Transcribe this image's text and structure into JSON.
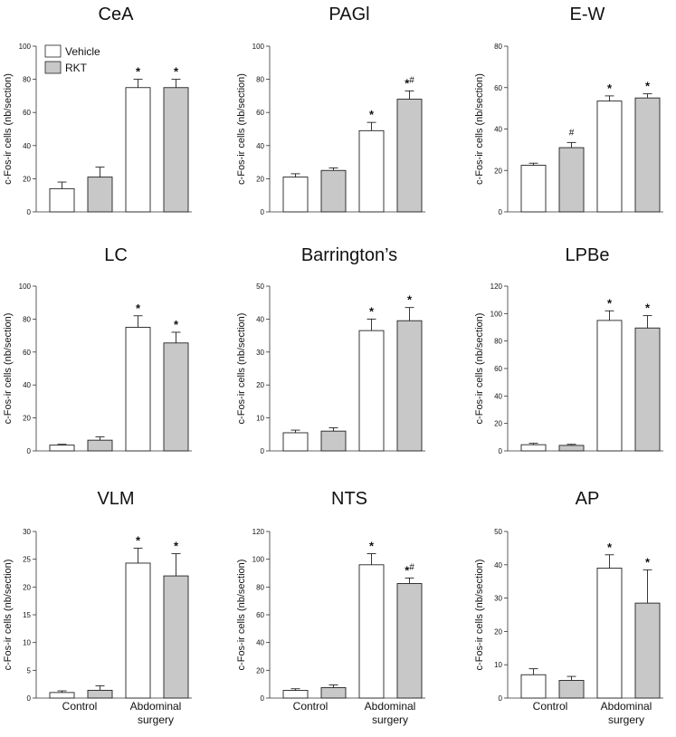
{
  "colors": {
    "vehicle": "#ffffff",
    "rkt": "#c8c8c8",
    "stroke": "#222222"
  },
  "legend": {
    "vehicle": "Vehicle",
    "rkt": "RKT"
  },
  "x_labels": {
    "control": "Control",
    "surgery_line1": "Abdominal",
    "surgery_line2": "surgery"
  },
  "chart_data": [
    {
      "type": "bar",
      "title": "CeA",
      "ylabel": "c-Fos-ir cells (nb/section)",
      "ylim": [
        0,
        100
      ],
      "yticks": [
        0,
        20,
        40,
        60,
        80,
        100
      ],
      "series": [
        {
          "name": "Vehicle",
          "values": [
            14,
            75
          ]
        },
        {
          "name": "RKT",
          "values": [
            21,
            75
          ]
        }
      ],
      "errors": [
        [
          4,
          5
        ],
        [
          6,
          5
        ]
      ],
      "categories": [
        "Control",
        "Abdominal surgery"
      ],
      "annotations": [
        {
          "bar": 2,
          "text": "*",
          "sup": ""
        },
        {
          "bar": 3,
          "text": "*",
          "sup": ""
        }
      ]
    },
    {
      "type": "bar",
      "title": "PAGl",
      "ylabel": "c-Fos-ir cells (nb/section)",
      "ylim": [
        0,
        100
      ],
      "yticks": [
        0,
        20,
        40,
        60,
        80,
        100
      ],
      "series": [
        {
          "name": "Vehicle",
          "values": [
            21,
            49
          ]
        },
        {
          "name": "RKT",
          "values": [
            25,
            68
          ]
        }
      ],
      "errors": [
        [
          2,
          5
        ],
        [
          1.5,
          5
        ]
      ],
      "categories": [
        "Control",
        "Abdominal surgery"
      ],
      "annotations": [
        {
          "bar": 2,
          "text": "*",
          "sup": ""
        },
        {
          "bar": 3,
          "text": "*",
          "sup": "#"
        }
      ]
    },
    {
      "type": "bar",
      "title": "E-W",
      "ylabel": "c-Fos-ir cells (nb/section)",
      "ylim": [
        0,
        80
      ],
      "yticks": [
        0,
        20,
        40,
        60,
        80
      ],
      "series": [
        {
          "name": "Vehicle",
          "values": [
            22.5,
            53.5
          ]
        },
        {
          "name": "RKT",
          "values": [
            31,
            55
          ]
        }
      ],
      "errors": [
        [
          1,
          2.5
        ],
        [
          2.5,
          2
        ]
      ],
      "categories": [
        "Control",
        "Abdominal surgery"
      ],
      "annotations": [
        {
          "bar": 1,
          "text": "#",
          "sup": ""
        },
        {
          "bar": 2,
          "text": "*",
          "sup": ""
        },
        {
          "bar": 3,
          "text": "*",
          "sup": ""
        }
      ]
    },
    {
      "type": "bar",
      "title": "LC",
      "ylabel": "c-Fos-ir cells (nb/section)",
      "ylim": [
        0,
        100
      ],
      "yticks": [
        0,
        20,
        40,
        60,
        80,
        100
      ],
      "series": [
        {
          "name": "Vehicle",
          "values": [
            3.5,
            75
          ]
        },
        {
          "name": "RKT",
          "values": [
            6.5,
            65.5
          ]
        }
      ],
      "errors": [
        [
          0.5,
          7
        ],
        [
          2,
          6.5
        ]
      ],
      "categories": [
        "Control",
        "Abdominal surgery"
      ],
      "annotations": [
        {
          "bar": 2,
          "text": "*",
          "sup": ""
        },
        {
          "bar": 3,
          "text": "*",
          "sup": ""
        }
      ]
    },
    {
      "type": "bar",
      "title": "Barrington’s",
      "ylabel": "c-Fos-ir cells (nb/section)",
      "ylim": [
        0,
        50
      ],
      "yticks": [
        0,
        10,
        20,
        30,
        40,
        50
      ],
      "series": [
        {
          "name": "Vehicle",
          "values": [
            5.5,
            36.5
          ]
        },
        {
          "name": "RKT",
          "values": [
            6,
            39.5
          ]
        }
      ],
      "errors": [
        [
          0.8,
          3.5
        ],
        [
          1,
          4
        ]
      ],
      "categories": [
        "Control",
        "Abdominal surgery"
      ],
      "annotations": [
        {
          "bar": 2,
          "text": "*",
          "sup": ""
        },
        {
          "bar": 3,
          "text": "*",
          "sup": ""
        }
      ]
    },
    {
      "type": "bar",
      "title": "LPBe",
      "ylabel": "c-Fos-ir cells (nb/section)",
      "ylim": [
        0,
        120
      ],
      "yticks": [
        0,
        20,
        40,
        60,
        80,
        100,
        120
      ],
      "series": [
        {
          "name": "Vehicle",
          "values": [
            4.5,
            95
          ]
        },
        {
          "name": "RKT",
          "values": [
            4,
            89.5
          ]
        }
      ],
      "errors": [
        [
          1,
          7
        ],
        [
          0.8,
          9
        ]
      ],
      "categories": [
        "Control",
        "Abdominal surgery"
      ],
      "annotations": [
        {
          "bar": 2,
          "text": "*",
          "sup": ""
        },
        {
          "bar": 3,
          "text": "*",
          "sup": ""
        }
      ]
    },
    {
      "type": "bar",
      "title": "VLM",
      "ylabel": "c-Fos-ir cells (nb/section)",
      "ylim": [
        0,
        30
      ],
      "yticks": [
        0,
        5,
        10,
        15,
        20,
        25,
        30
      ],
      "series": [
        {
          "name": "Vehicle",
          "values": [
            1,
            24.3
          ]
        },
        {
          "name": "RKT",
          "values": [
            1.4,
            22
          ]
        }
      ],
      "errors": [
        [
          0.3,
          2.7
        ],
        [
          0.8,
          4
        ]
      ],
      "categories": [
        "Control",
        "Abdominal surgery"
      ],
      "annotations": [
        {
          "bar": 2,
          "text": "*",
          "sup": ""
        },
        {
          "bar": 3,
          "text": "*",
          "sup": ""
        }
      ]
    },
    {
      "type": "bar",
      "title": "NTS",
      "ylabel": "c-Fos-ir cells (nb/section)",
      "ylim": [
        0,
        120
      ],
      "yticks": [
        0,
        20,
        40,
        60,
        80,
        100,
        120
      ],
      "series": [
        {
          "name": "Vehicle",
          "values": [
            5.5,
            96
          ]
        },
        {
          "name": "RKT",
          "values": [
            7.5,
            82.5
          ]
        }
      ],
      "errors": [
        [
          1.2,
          8
        ],
        [
          2,
          4
        ]
      ],
      "categories": [
        "Control",
        "Abdominal surgery"
      ],
      "annotations": [
        {
          "bar": 2,
          "text": "*",
          "sup": ""
        },
        {
          "bar": 3,
          "text": "*",
          "sup": "#"
        }
      ]
    },
    {
      "type": "bar",
      "title": "AP",
      "ylabel": "c-Fos-ir cells (nb/section)",
      "ylim": [
        0,
        50
      ],
      "yticks": [
        0,
        10,
        20,
        30,
        40,
        50
      ],
      "series": [
        {
          "name": "Vehicle",
          "values": [
            7,
            39
          ]
        },
        {
          "name": "RKT",
          "values": [
            5.3,
            28.5
          ]
        }
      ],
      "errors": [
        [
          1.8,
          4
        ],
        [
          1.2,
          10
        ]
      ],
      "categories": [
        "Control",
        "Abdominal surgery"
      ],
      "annotations": [
        {
          "bar": 2,
          "text": "*",
          "sup": ""
        },
        {
          "bar": 3,
          "text": "*",
          "sup": ""
        }
      ]
    }
  ]
}
